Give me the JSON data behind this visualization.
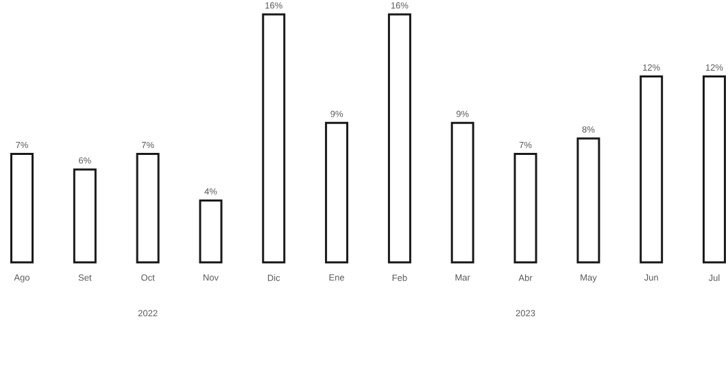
{
  "chart_data": {
    "type": "bar",
    "categories": [
      "Ago",
      "Set",
      "Oct",
      "Nov",
      "Dic",
      "Ene",
      "Feb",
      "Mar",
      "Abr",
      "May",
      "Jun",
      "Jul"
    ],
    "values": [
      7,
      6,
      7,
      4,
      16,
      9,
      16,
      9,
      7,
      8,
      12,
      12
    ],
    "value_labels": [
      "7%",
      "6%",
      "7%",
      "4%",
      "16%",
      "9%",
      "16%",
      "9%",
      "7%",
      "8%",
      "12%",
      "12%"
    ],
    "color": "#1a1a1a",
    "annotations": [
      "2022",
      "2023"
    ]
  }
}
